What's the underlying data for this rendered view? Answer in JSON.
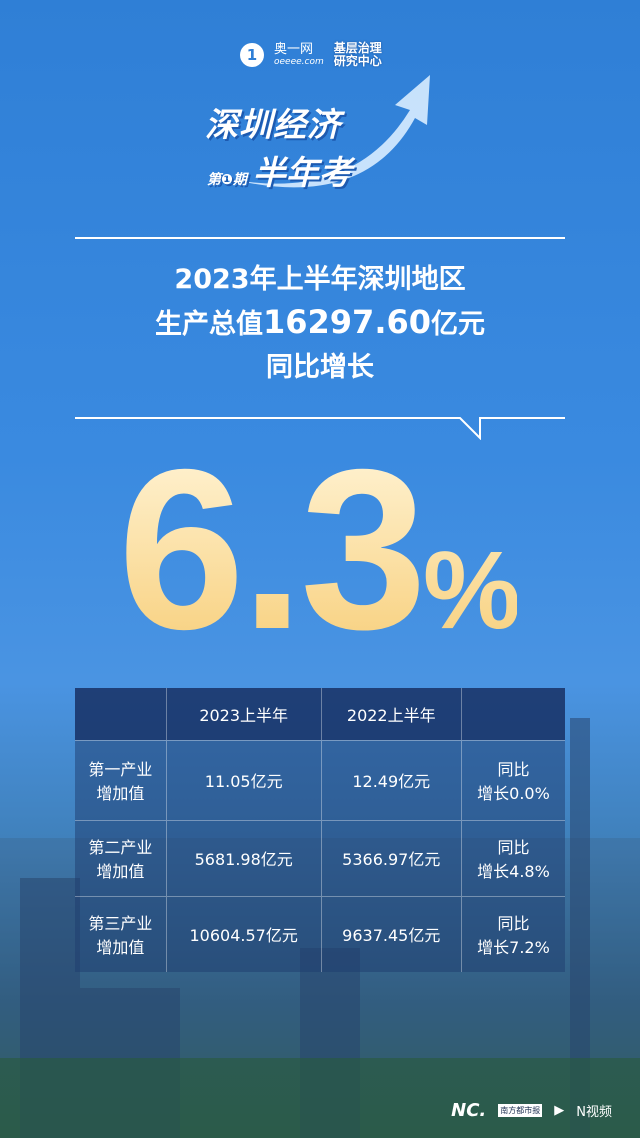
{
  "logos": {
    "brand1_icon": "1",
    "brand1_name": "奥一网",
    "brand1_domain": "oeeee.com",
    "brand2_line1": "基层治理",
    "brand2_line2": "研究中心"
  },
  "title": {
    "line1": "深圳经济",
    "issue": "第❶期",
    "line2": "半年考"
  },
  "headline": {
    "line1": "2023年上半年深圳地区",
    "line2_prefix": "生产总值",
    "line2_value": "16297.60",
    "line2_suffix": "亿元",
    "line3": "同比增长"
  },
  "growth": {
    "value": "6.3",
    "unit": "%"
  },
  "table": {
    "headers": [
      "",
      "2023上半年",
      "2022上半年",
      ""
    ],
    "rows": [
      {
        "label": [
          "第一产业",
          "增加值"
        ],
        "y2023": "11.05亿元",
        "y2022": "12.49亿元",
        "change": [
          "同比",
          "增长0.0%"
        ]
      },
      {
        "label": [
          "第二产业",
          "增加值"
        ],
        "y2023": "5681.98亿元",
        "y2022": "5366.97亿元",
        "change": [
          "同比",
          "增长4.8%"
        ]
      },
      {
        "label": [
          "第三产业",
          "增加值"
        ],
        "y2023": "10604.57亿元",
        "y2022": "9637.45亿元",
        "change": [
          "同比",
          "增长7.2%"
        ]
      }
    ]
  },
  "footer": {
    "logo1": "NC.",
    "logo1_sub": "南方都市报",
    "logo2": "N视频"
  }
}
